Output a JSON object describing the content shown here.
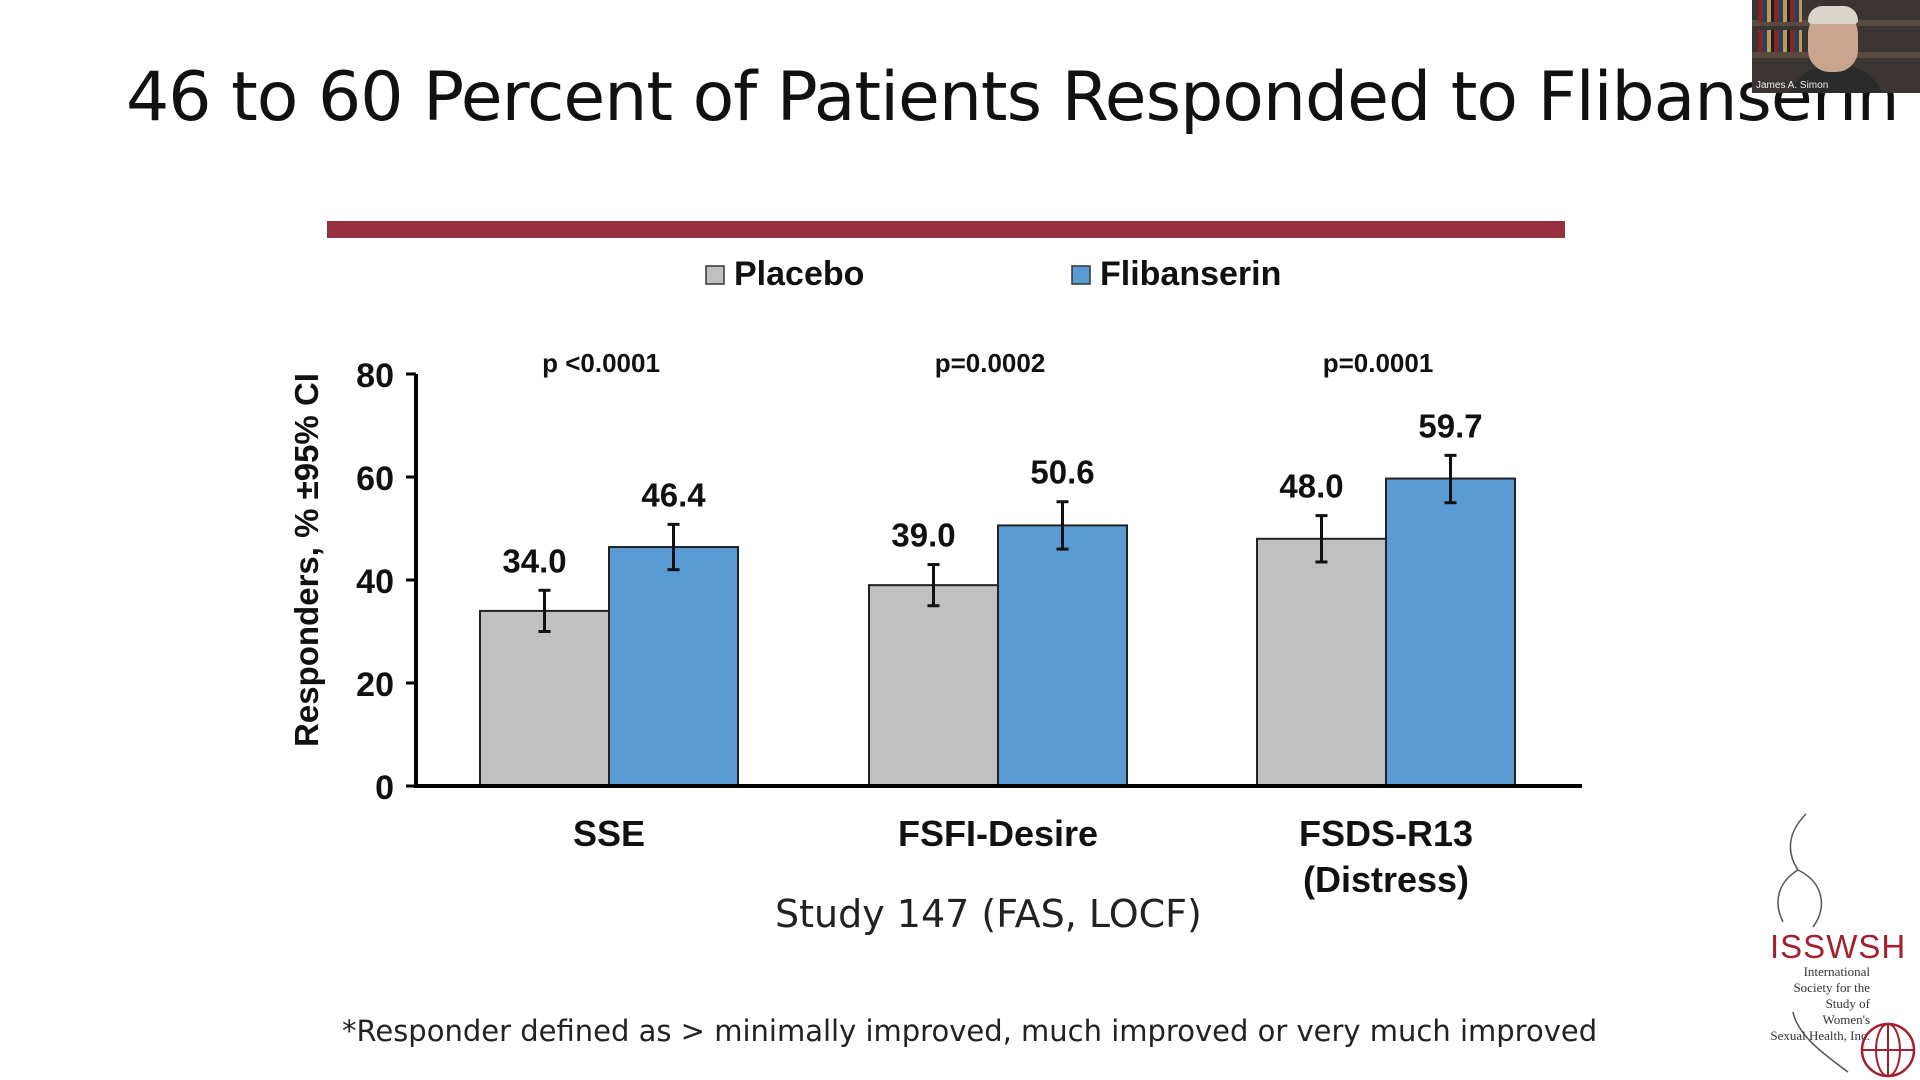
{
  "slide": {
    "title": "46 to 60 Percent of Patients Responded to Flibanserin",
    "rule_color": "#96303f",
    "study_label": "Study 147 (FAS, LOCF)",
    "footnote": "*Responder defined as > minimally improved, much improved or very much improved"
  },
  "webcam": {
    "caption": "James A. Simon"
  },
  "logo": {
    "name": "ISSWSH",
    "subtitle_lines": [
      "International",
      "Society for the",
      "Study of",
      "Women's",
      "Sexual Health, Inc."
    ]
  },
  "chart_data": {
    "type": "bar",
    "title": "",
    "xlabel": "",
    "ylabel": "Responders, % ±95% CI",
    "ylim": [
      0,
      80
    ],
    "yticks": [
      0,
      20,
      40,
      60,
      80
    ],
    "legend_position": "top-center",
    "categories": [
      {
        "label": [
          "SSE"
        ],
        "p_value": "p <0.0001"
      },
      {
        "label": [
          "FSFI-Desire"
        ],
        "p_value": "p=0.0002"
      },
      {
        "label": [
          "FSDS-R13",
          "(Distress)"
        ],
        "p_value": "p=0.0001"
      }
    ],
    "series": [
      {
        "name": "Placebo",
        "color": "#c0c0c0",
        "values": [
          34.0,
          39.0,
          48.0
        ],
        "value_labels": [
          "34.0",
          "39.0",
          "48.0"
        ],
        "ci_low": [
          30.0,
          35.0,
          43.5
        ],
        "ci_high": [
          38.0,
          43.0,
          52.5
        ]
      },
      {
        "name": "Flibanserin",
        "color": "#5b9bd5",
        "values": [
          46.4,
          50.6,
          59.7
        ],
        "value_labels": [
          "46.4",
          "50.6",
          "59.7"
        ],
        "ci_low": [
          42.0,
          46.0,
          55.0
        ],
        "ci_high": [
          50.8,
          55.2,
          64.2
        ]
      }
    ]
  }
}
